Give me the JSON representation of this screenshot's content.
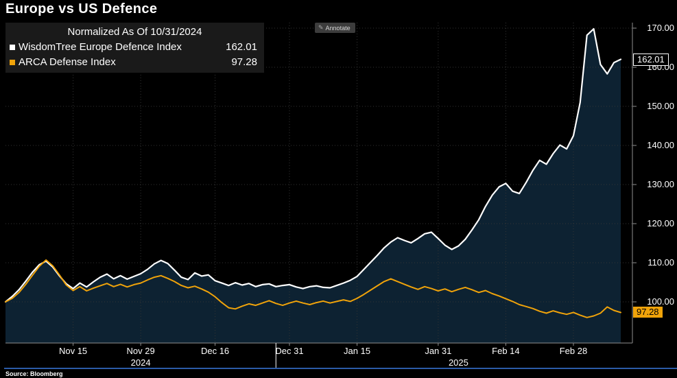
{
  "title": "Europe vs US Defence",
  "toolbar": {
    "annotate_label": "Annotate",
    "annotate_icon": "pencil-icon"
  },
  "legend": {
    "normalized_label": "Normalized As Of 10/31/2024",
    "series": [
      {
        "label": "WisdomTree Europe Defence Index",
        "value": "162.01",
        "marker_color": "#ffffff"
      },
      {
        "label": "ARCA Defense Index",
        "value": "97.28",
        "marker_color": "#f0a30a"
      }
    ]
  },
  "footer": {
    "source_label": "Source: Bloomberg"
  },
  "colors": {
    "background": "#000000",
    "area_fill": "#0d2232",
    "europe_line": "#ffffff",
    "arca_line": "#f0a30a",
    "grid": "#353535",
    "axis": "#8f8f8f",
    "year_divider": "#ffffff",
    "bottom_bar": "#2b5ba8"
  },
  "chart_data": {
    "type": "line",
    "title": "Europe vs US Defence",
    "normalized_as_of": "10/31/2024",
    "x_axis_unit": "trading days since 10/31/2024",
    "ylim": [
      89.5,
      171.5
    ],
    "y_ticks": [
      170,
      160,
      150,
      140,
      130,
      120,
      110,
      100
    ],
    "y_tick_labels": [
      "170.00",
      "160.00",
      "150.00",
      "140.00",
      "130.00",
      "120.00",
      "110.00",
      "100.00"
    ],
    "grid": {
      "color": "#353535",
      "style": "dotted"
    },
    "legend_position": "top-left",
    "x_ticks": [
      {
        "td": 11,
        "label": "Nov 15"
      },
      {
        "td": 21,
        "label": "Nov 29"
      },
      {
        "td": 32,
        "label": "Dec 16"
      },
      {
        "td": 43,
        "label": "Dec 31"
      },
      {
        "td": 53,
        "label": "Jan 15"
      },
      {
        "td": 65,
        "label": "Jan 31"
      },
      {
        "td": 75,
        "label": "Feb 14"
      },
      {
        "td": 85,
        "label": "Feb 28"
      }
    ],
    "year_divider_td": 41,
    "year_labels": [
      {
        "label": "2024",
        "td": 21
      },
      {
        "label": "2025",
        "td": 68
      }
    ],
    "badges": [
      {
        "name": "europe-last-value-badge",
        "text": "162.01",
        "value": 162.01,
        "bg": "#000000",
        "fg": "#ffffff",
        "border": "#ffffff"
      },
      {
        "name": "arca-last-value-badge",
        "text": "97.28",
        "value": 97.28,
        "bg": "#f0a30a",
        "fg": "#000000"
      }
    ],
    "series": [
      {
        "name": "WisdomTree Europe Defence Index",
        "color": "#ffffff",
        "area_fill": "#0d2232",
        "last_value": 162.01,
        "points": [
          [
            1,
            100
          ],
          [
            2,
            101.4
          ],
          [
            3,
            103.1
          ],
          [
            4,
            105.3
          ],
          [
            5,
            107.6
          ],
          [
            6,
            109.5
          ],
          [
            7,
            110.4
          ],
          [
            8,
            108.9
          ],
          [
            9,
            106.6
          ],
          [
            10,
            104.6
          ],
          [
            11,
            103.4
          ],
          [
            12,
            104.8
          ],
          [
            13,
            103.8
          ],
          [
            14,
            105.1
          ],
          [
            15,
            106.3
          ],
          [
            16,
            107.1
          ],
          [
            17,
            105.9
          ],
          [
            18,
            106.7
          ],
          [
            19,
            105.8
          ],
          [
            20,
            106.5
          ],
          [
            21,
            107.2
          ],
          [
            22,
            108.3
          ],
          [
            23,
            109.7
          ],
          [
            24,
            110.6
          ],
          [
            25,
            109.8
          ],
          [
            26,
            108.1
          ],
          [
            27,
            106.3
          ],
          [
            28,
            105.7
          ],
          [
            29,
            107.4
          ],
          [
            30,
            106.6
          ],
          [
            31,
            106.9
          ],
          [
            32,
            105.4
          ],
          [
            33,
            104.8
          ],
          [
            34,
            104.2
          ],
          [
            35,
            104.9
          ],
          [
            36,
            104.3
          ],
          [
            37,
            104.7
          ],
          [
            38,
            103.9
          ],
          [
            39,
            104.4
          ],
          [
            40,
            104.6
          ],
          [
            41,
            103.9
          ],
          [
            42,
            104.2
          ],
          [
            43,
            104.4
          ],
          [
            44,
            103.8
          ],
          [
            45,
            103.4
          ],
          [
            46,
            103.9
          ],
          [
            47,
            104.1
          ],
          [
            48,
            103.7
          ],
          [
            49,
            103.6
          ],
          [
            50,
            104.2
          ],
          [
            51,
            104.8
          ],
          [
            52,
            105.5
          ],
          [
            53,
            106.5
          ],
          [
            54,
            108.3
          ],
          [
            55,
            110.1
          ],
          [
            56,
            111.9
          ],
          [
            57,
            113.8
          ],
          [
            58,
            115.3
          ],
          [
            59,
            116.4
          ],
          [
            60,
            115.7
          ],
          [
            61,
            115.1
          ],
          [
            62,
            116.2
          ],
          [
            63,
            117.4
          ],
          [
            64,
            117.8
          ],
          [
            65,
            116.2
          ],
          [
            66,
            114.5
          ],
          [
            67,
            113.4
          ],
          [
            68,
            114.3
          ],
          [
            69,
            116
          ],
          [
            70,
            118.4
          ],
          [
            71,
            121
          ],
          [
            72,
            124.4
          ],
          [
            73,
            127.3
          ],
          [
            74,
            129.4
          ],
          [
            75,
            130.3
          ],
          [
            76,
            128.3
          ],
          [
            77,
            127.7
          ],
          [
            78,
            130.5
          ],
          [
            79,
            133.6
          ],
          [
            80,
            136.2
          ],
          [
            81,
            135.2
          ],
          [
            82,
            137.9
          ],
          [
            83,
            140.1
          ],
          [
            84,
            139.1
          ],
          [
            85,
            142.5
          ],
          [
            86,
            151
          ],
          [
            87,
            168.2
          ],
          [
            88,
            169.8
          ],
          [
            89,
            160.7
          ],
          [
            90,
            158.3
          ],
          [
            91,
            161.2
          ],
          [
            92,
            162.01
          ]
        ]
      },
      {
        "name": "ARCA Defense Index",
        "color": "#f0a30a",
        "last_value": 97.28,
        "points": [
          [
            1,
            100
          ],
          [
            2,
            100.9
          ],
          [
            3,
            102.4
          ],
          [
            4,
            104.5
          ],
          [
            5,
            106.8
          ],
          [
            6,
            109.1
          ],
          [
            7,
            110.7
          ],
          [
            8,
            109.2
          ],
          [
            9,
            106.8
          ],
          [
            10,
            104.3
          ],
          [
            11,
            102.9
          ],
          [
            12,
            103.9
          ],
          [
            13,
            102.8
          ],
          [
            14,
            103.5
          ],
          [
            15,
            104.1
          ],
          [
            16,
            104.7
          ],
          [
            17,
            103.9
          ],
          [
            18,
            104.5
          ],
          [
            19,
            103.8
          ],
          [
            20,
            104.4
          ],
          [
            21,
            104.8
          ],
          [
            22,
            105.6
          ],
          [
            23,
            106.3
          ],
          [
            24,
            106.7
          ],
          [
            25,
            106
          ],
          [
            26,
            105.2
          ],
          [
            27,
            104.2
          ],
          [
            28,
            103.6
          ],
          [
            29,
            104
          ],
          [
            30,
            103.3
          ],
          [
            31,
            102.5
          ],
          [
            32,
            101.3
          ],
          [
            33,
            99.8
          ],
          [
            34,
            98.5
          ],
          [
            35,
            98.2
          ],
          [
            36,
            98.9
          ],
          [
            37,
            99.5
          ],
          [
            38,
            99.1
          ],
          [
            39,
            99.7
          ],
          [
            40,
            100.3
          ],
          [
            41,
            99.6
          ],
          [
            42,
            99.1
          ],
          [
            43,
            99.7
          ],
          [
            44,
            100.2
          ],
          [
            45,
            99.7
          ],
          [
            46,
            99.3
          ],
          [
            47,
            99.8
          ],
          [
            48,
            100.2
          ],
          [
            49,
            99.7
          ],
          [
            50,
            100.1
          ],
          [
            51,
            100.5
          ],
          [
            52,
            100.1
          ],
          [
            53,
            100.9
          ],
          [
            54,
            101.9
          ],
          [
            55,
            103
          ],
          [
            56,
            104.1
          ],
          [
            57,
            105.2
          ],
          [
            58,
            105.9
          ],
          [
            59,
            105.2
          ],
          [
            60,
            104.5
          ],
          [
            61,
            103.8
          ],
          [
            62,
            103.2
          ],
          [
            63,
            103.9
          ],
          [
            64,
            103.4
          ],
          [
            65,
            102.8
          ],
          [
            66,
            103.3
          ],
          [
            67,
            102.6
          ],
          [
            68,
            103.2
          ],
          [
            69,
            103.7
          ],
          [
            70,
            103.1
          ],
          [
            71,
            102.4
          ],
          [
            72,
            102.9
          ],
          [
            73,
            102.1
          ],
          [
            74,
            101.5
          ],
          [
            75,
            100.8
          ],
          [
            76,
            100.1
          ],
          [
            77,
            99.3
          ],
          [
            78,
            98.8
          ],
          [
            79,
            98.3
          ],
          [
            80,
            97.6
          ],
          [
            81,
            97.1
          ],
          [
            82,
            97.7
          ],
          [
            83,
            97.2
          ],
          [
            84,
            96.8
          ],
          [
            85,
            97.3
          ],
          [
            86,
            96.6
          ],
          [
            87,
            96
          ],
          [
            88,
            96.4
          ],
          [
            89,
            97.1
          ],
          [
            90,
            98.7
          ],
          [
            91,
            97.8
          ],
          [
            92,
            97.28
          ]
        ]
      }
    ]
  }
}
